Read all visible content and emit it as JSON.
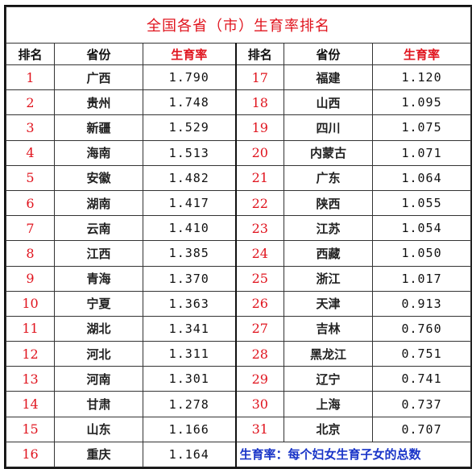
{
  "title": "全国各省（市）生育率排名",
  "headers": {
    "rank": "排名",
    "province": "省份",
    "rate": "生育率"
  },
  "left_rows": [
    {
      "rank": "1",
      "province": "广西",
      "rate": "1.790"
    },
    {
      "rank": "2",
      "province": "贵州",
      "rate": "1.748"
    },
    {
      "rank": "3",
      "province": "新疆",
      "rate": "1.529"
    },
    {
      "rank": "4",
      "province": "海南",
      "rate": "1.513"
    },
    {
      "rank": "5",
      "province": "安徽",
      "rate": "1.482"
    },
    {
      "rank": "6",
      "province": "湖南",
      "rate": "1.417"
    },
    {
      "rank": "7",
      "province": "云南",
      "rate": "1.410"
    },
    {
      "rank": "8",
      "province": "江西",
      "rate": "1.385"
    },
    {
      "rank": "9",
      "province": "青海",
      "rate": "1.370"
    },
    {
      "rank": "10",
      "province": "宁夏",
      "rate": "1.363"
    },
    {
      "rank": "11",
      "province": "湖北",
      "rate": "1.341"
    },
    {
      "rank": "12",
      "province": "河北",
      "rate": "1.311"
    },
    {
      "rank": "13",
      "province": "河南",
      "rate": "1.301"
    },
    {
      "rank": "14",
      "province": "甘肃",
      "rate": "1.278"
    },
    {
      "rank": "15",
      "province": "山东",
      "rate": "1.166"
    },
    {
      "rank": "16",
      "province": "重庆",
      "rate": "1.164"
    }
  ],
  "right_rows": [
    {
      "rank": "17",
      "province": "福建",
      "rate": "1.120"
    },
    {
      "rank": "18",
      "province": "山西",
      "rate": "1.095"
    },
    {
      "rank": "19",
      "province": "四川",
      "rate": "1.075"
    },
    {
      "rank": "20",
      "province": "内蒙古",
      "rate": "1.071"
    },
    {
      "rank": "21",
      "province": "广东",
      "rate": "1.064"
    },
    {
      "rank": "22",
      "province": "陕西",
      "rate": "1.055"
    },
    {
      "rank": "23",
      "province": "江苏",
      "rate": "1.054"
    },
    {
      "rank": "24",
      "province": "西藏",
      "rate": "1.050"
    },
    {
      "rank": "25",
      "province": "浙江",
      "rate": "1.017"
    },
    {
      "rank": "26",
      "province": "天津",
      "rate": "0.913"
    },
    {
      "rank": "27",
      "province": "吉林",
      "rate": "0.760"
    },
    {
      "rank": "28",
      "province": "黑龙江",
      "rate": "0.751"
    },
    {
      "rank": "29",
      "province": "辽宁",
      "rate": "0.741"
    },
    {
      "rank": "30",
      "province": "上海",
      "rate": "0.737"
    },
    {
      "rank": "31",
      "province": "北京",
      "rate": "0.707"
    }
  ],
  "note": "生育率：每个妇女生育子女的总数",
  "colors": {
    "accent_red": "#e0141e",
    "note_blue": "#1a35c8"
  }
}
